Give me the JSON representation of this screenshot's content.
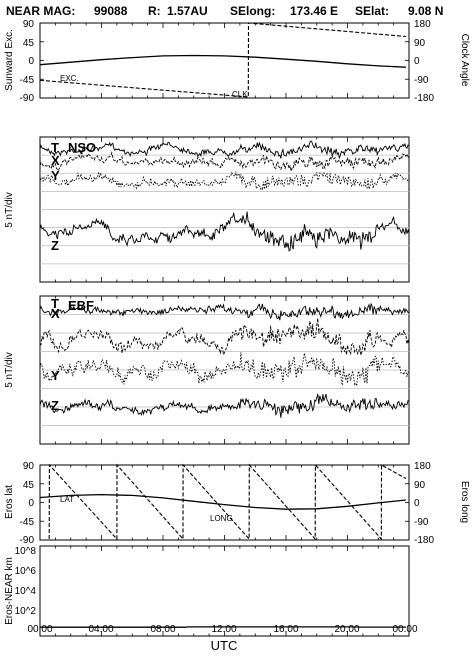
{
  "header": {
    "mission": "NEAR MAG:",
    "day": "99088",
    "r_label": "R:",
    "r_value": "1.57AU",
    "selong_label": "SElong:",
    "selong_value": "173.46 E",
    "selat_label": "SElat:",
    "selat_value": "9.08 N"
  },
  "x_axis": {
    "label": "UTC",
    "ticks": [
      "00:00",
      "04:00",
      "08:00",
      "12:00",
      "16:00",
      "20:00",
      "00:00"
    ],
    "range_hours": [
      0,
      24
    ]
  },
  "chart_data": [
    {
      "type": "line",
      "ylabel_left": "Sunward Exc.",
      "ylabel_right": "Clock Angle",
      "yticks_left": [
        "90",
        "45",
        "0",
        "-45",
        "-90"
      ],
      "yticks_right": [
        "180",
        "90",
        "0",
        "-90",
        "-180"
      ],
      "ylim_left": [
        -90,
        90
      ],
      "ylim_right": [
        -180,
        180
      ],
      "annotations": [
        "EXC.",
        "CLK"
      ],
      "series": [
        {
          "name": "EXC.",
          "style": "solid",
          "x": [
            0,
            2,
            4,
            6,
            8,
            10,
            12,
            14,
            16,
            18,
            20,
            22,
            23.8
          ],
          "y": [
            -10,
            -4,
            2,
            7,
            11,
            12,
            11,
            8,
            3,
            -2,
            -8,
            -13,
            -16
          ]
        },
        {
          "name": "CLK",
          "style": "dashed",
          "x": [
            0,
            13.55,
            13.56,
            23.8
          ],
          "y": [
            -95,
            -175,
            180,
            115
          ]
        }
      ]
    },
    {
      "type": "line",
      "ylabel": "5 nT/div",
      "label": "NSO",
      "traces": [
        "T",
        "X",
        "Y",
        "Z"
      ],
      "grid": true
    },
    {
      "type": "line",
      "ylabel": "5 nT/div",
      "label": "EBF",
      "traces": [
        "T",
        "X",
        "Y",
        "Z"
      ],
      "grid": true
    },
    {
      "type": "line",
      "ylabel_left": "Eros lat",
      "ylabel_right": "Eros long",
      "yticks_left": [
        "90",
        "45",
        "0",
        "-45",
        "-90"
      ],
      "yticks_right": [
        "180",
        "90",
        "0",
        "-90",
        "-180"
      ],
      "ylim_left": [
        -90,
        90
      ],
      "ylim_right": [
        -180,
        180
      ],
      "annotations": [
        "LAT",
        "LONG"
      ],
      "series": [
        {
          "name": "LAT",
          "style": "solid",
          "x": [
            0,
            2,
            4,
            6,
            8,
            10,
            12,
            14,
            16,
            18,
            20,
            22,
            23.8
          ],
          "y": [
            12,
            17,
            19,
            17,
            11,
            3,
            -5,
            -12,
            -16,
            -15,
            -9,
            -1,
            6
          ]
        },
        {
          "name": "LONG",
          "style": "dashed",
          "x": [
            0.6,
            0.61,
            5.0,
            5.01,
            9.3,
            9.31,
            13.6,
            13.61,
            17.9,
            17.91,
            22.2,
            22.21,
            23.8
          ],
          "y": [
            -175,
            180,
            -175,
            180,
            -175,
            180,
            -175,
            180,
            -175,
            180,
            -175,
            180,
            115
          ]
        }
      ]
    },
    {
      "type": "line",
      "ylabel": "Eros-NEAR km",
      "yscale": "log",
      "yticks": [
        "10^8",
        "10^6",
        "10^4",
        "10^2"
      ],
      "ylim": [
        10,
        1000000000.0
      ],
      "series": [
        {
          "style": "solid",
          "x": [
            0,
            9.5,
            9.6,
            20.6,
            20.7,
            23.8
          ],
          "y": [
            60,
            60,
            65,
            65,
            62,
            62
          ]
        }
      ]
    }
  ],
  "colors": {
    "ink": "#000000",
    "grid": "#bcbcbc",
    "background": "#ffffff"
  }
}
